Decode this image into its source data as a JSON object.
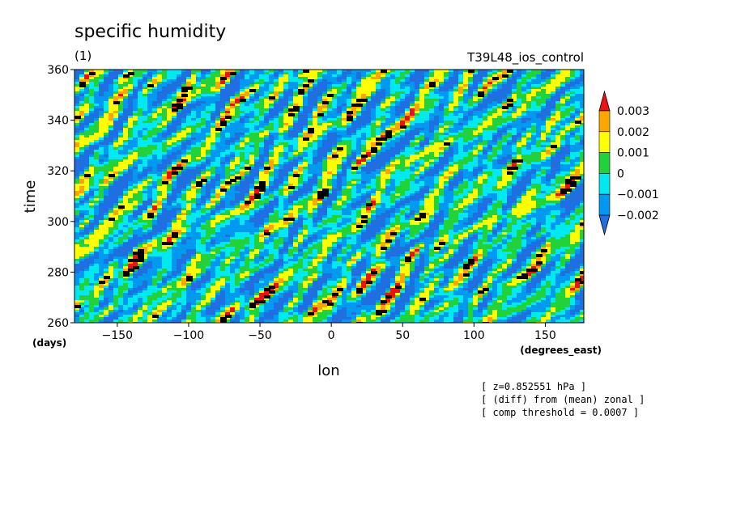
{
  "chart_data": {
    "type": "heatmap",
    "title": "specific humidity",
    "subtitle": "(1)",
    "run_label": "T39L48_ios_control",
    "xlabel": "lon",
    "ylabel": "time",
    "x_units": "(degrees_east)",
    "y_units": "(days)",
    "xlim": [
      -180,
      177
    ],
    "ylim": [
      260,
      360
    ],
    "x_ticks": [
      -150,
      -100,
      -50,
      0,
      50,
      100,
      150
    ],
    "y_ticks": [
      260,
      280,
      300,
      320,
      340,
      360
    ],
    "x_tick_labels": [
      "−150",
      "−100",
      "−50",
      "0",
      "50",
      "100",
      "150"
    ],
    "y_tick_labels": [
      "260",
      "280",
      "300",
      "320",
      "340",
      "360"
    ],
    "colorbar": {
      "levels": [
        -0.002,
        -0.001,
        0,
        0.001,
        0.002,
        0.003
      ],
      "labels": [
        "−0.002",
        "−0.001",
        "0",
        "0.001",
        "0.002",
        "0.003"
      ],
      "colors": [
        "#1f6fe0",
        "#0099f0",
        "#00e8f0",
        "#22d23a",
        "#ffff00",
        "#ffa500",
        "#ee1111"
      ],
      "extend": "both"
    },
    "composite_marker_color": "#000000",
    "annotations": [
      "[ z=0.852551 hPa ]",
      "[ (diff) from (mean) zonal ]",
      "[ comp threshold = 0.0007 ]"
    ]
  }
}
